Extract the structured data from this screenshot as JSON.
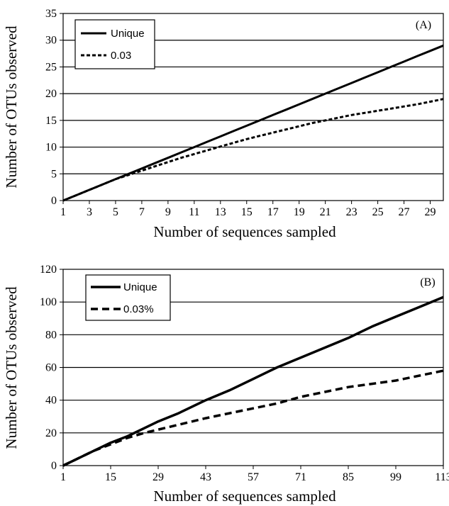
{
  "chart_data": [
    {
      "type": "line",
      "panel_label": "(A)",
      "xlabel": "Number of sequences sampled",
      "ylabel": "Number of OTUs observed",
      "xlim": [
        1,
        30
      ],
      "ylim": [
        0,
        35
      ],
      "y_ticks": [
        0,
        5,
        10,
        15,
        20,
        25,
        30,
        35
      ],
      "x_tick_labels": [
        "1",
        "3",
        "5",
        "7",
        "9",
        "11",
        "13",
        "15",
        "17",
        "19",
        "21",
        "23",
        "25",
        "27",
        "29"
      ],
      "grid": "horizontal",
      "legend_position": "top-left",
      "series": [
        {
          "name": "Unique",
          "style": "solid",
          "x": [
            1,
            2,
            3,
            4,
            5,
            6,
            7,
            8,
            9,
            10,
            11,
            12,
            13,
            14,
            15,
            16,
            17,
            18,
            19,
            20,
            21,
            22,
            23,
            24,
            25,
            26,
            27,
            28,
            29,
            30
          ],
          "values": [
            0,
            1,
            2,
            3,
            4,
            5,
            6,
            7,
            8,
            9,
            10,
            11,
            12,
            13,
            14,
            15,
            16,
            17,
            18,
            19,
            20,
            21,
            22,
            23,
            24,
            25,
            26,
            27,
            28,
            29
          ]
        },
        {
          "name": "0.03",
          "style": "dashed",
          "x": [
            1,
            2,
            3,
            4,
            5,
            6,
            7,
            8,
            9,
            10,
            11,
            12,
            13,
            14,
            15,
            16,
            17,
            18,
            19,
            20,
            21,
            22,
            23,
            24,
            25,
            26,
            27,
            28,
            29,
            30
          ],
          "values": [
            0,
            1,
            2,
            3,
            4,
            4.8,
            5.6,
            6.4,
            7.2,
            8,
            8.7,
            9.4,
            10.1,
            10.8,
            11.5,
            12.1,
            12.7,
            13.3,
            13.9,
            14.5,
            15,
            15.5,
            16,
            16.4,
            16.8,
            17.2,
            17.6,
            18,
            18.5,
            19
          ]
        }
      ]
    },
    {
      "type": "line",
      "panel_label": "(B)",
      "xlabel": "Number of sequences sampled",
      "ylabel": "Number of OTUs observed",
      "xlim": [
        1,
        113
      ],
      "ylim": [
        0,
        120
      ],
      "y_ticks": [
        0,
        20,
        40,
        60,
        80,
        100,
        120
      ],
      "x_tick_labels": [
        "1",
        "15",
        "29",
        "43",
        "57",
        "71",
        "85",
        "99",
        "113"
      ],
      "grid": "horizontal",
      "legend_position": "top-left",
      "series": [
        {
          "name": "Unique",
          "style": "solid",
          "x": [
            1,
            5,
            10,
            15,
            20,
            25,
            29,
            35,
            43,
            50,
            57,
            64,
            71,
            78,
            85,
            92,
            99,
            106,
            113
          ],
          "values": [
            0,
            4,
            9,
            14,
            18,
            23,
            27,
            32,
            40,
            46,
            53,
            60,
            66,
            72,
            78,
            85,
            91,
            97,
            103
          ]
        },
        {
          "name": "0.03%",
          "style": "dashed",
          "x": [
            1,
            5,
            10,
            15,
            20,
            25,
            29,
            35,
            43,
            50,
            57,
            64,
            71,
            78,
            85,
            92,
            99,
            106,
            113
          ],
          "values": [
            0,
            4,
            9,
            13,
            17,
            20,
            22,
            25,
            29,
            32,
            35,
            38,
            42,
            45,
            48,
            50,
            52,
            55,
            58
          ]
        }
      ]
    }
  ]
}
